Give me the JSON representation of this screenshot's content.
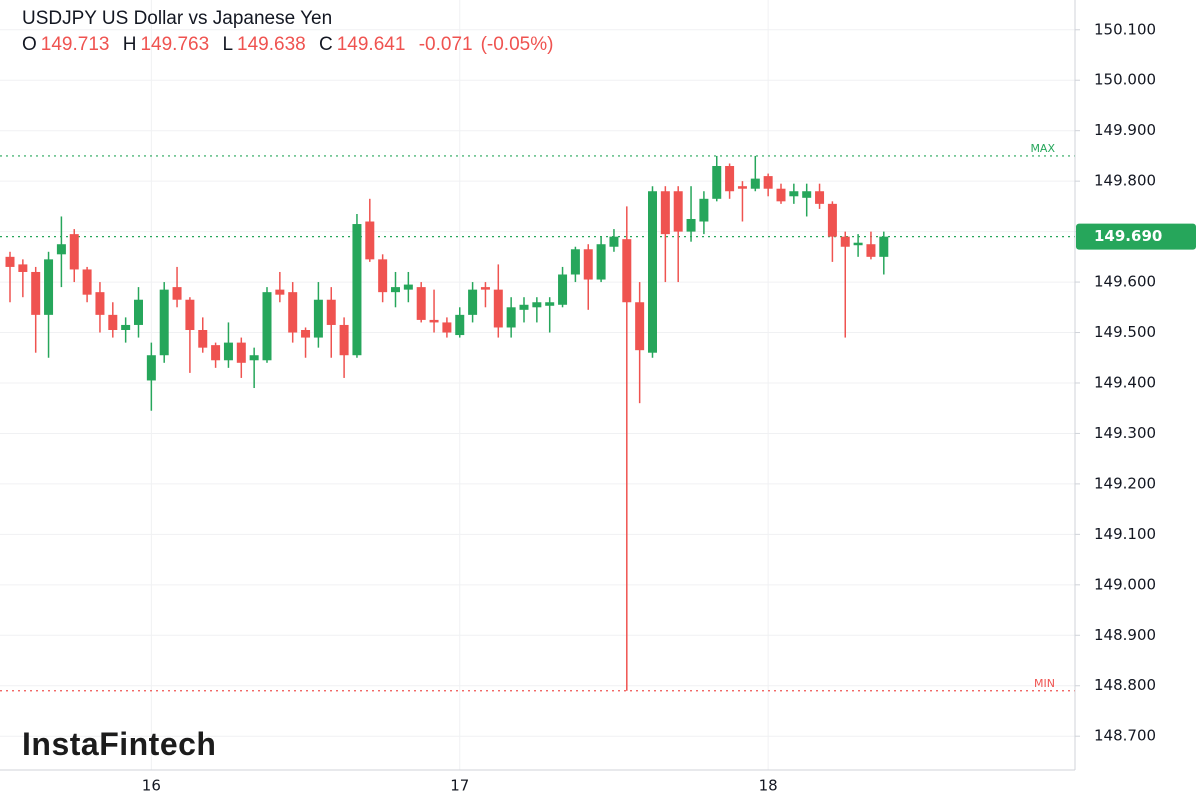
{
  "chart_data": {
    "type": "candlestick",
    "title": "USDJPY US Dollar vs Japanese Yen",
    "ohlc_header": {
      "open_label": "O",
      "open": 149.713,
      "high_label": "H",
      "high": 149.763,
      "low_label": "L",
      "low": 149.638,
      "close_label": "C",
      "close": 149.641,
      "change": -0.071,
      "change_pct": "(-0.05%)"
    },
    "watermark": "InstaFintech",
    "categories": [
      null,
      null,
      null,
      null,
      null,
      null,
      null,
      null,
      null,
      null,
      null,
      "16",
      null,
      null,
      null,
      null,
      null,
      null,
      null,
      null,
      null,
      null,
      null,
      null,
      null,
      null,
      null,
      null,
      null,
      null,
      null,
      null,
      null,
      null,
      null,
      "17",
      null,
      null,
      null,
      null,
      null,
      null,
      null,
      null,
      null,
      null,
      null,
      null,
      null,
      null,
      null,
      null,
      null,
      null,
      null,
      null,
      null,
      null,
      null,
      "18",
      null,
      null,
      null,
      null,
      null,
      null,
      null,
      null,
      null
    ],
    "open": [
      149.65,
      149.635,
      149.62,
      149.535,
      149.655,
      149.695,
      149.625,
      149.58,
      149.535,
      149.505,
      149.515,
      149.405,
      149.455,
      149.59,
      149.565,
      149.505,
      149.475,
      149.445,
      149.48,
      149.445,
      149.445,
      149.585,
      149.58,
      149.505,
      149.49,
      149.565,
      149.515,
      149.455,
      149.72,
      149.645,
      149.58,
      149.585,
      149.59,
      149.525,
      149.52,
      149.495,
      149.535,
      149.59,
      149.585,
      149.51,
      149.545,
      149.55,
      149.553,
      149.555,
      149.615,
      149.665,
      149.605,
      149.67,
      149.685,
      149.56,
      149.46,
      149.78,
      149.78,
      149.7,
      149.72,
      149.765,
      149.83,
      149.79,
      149.785,
      149.81,
      149.785,
      149.77,
      149.767,
      149.78,
      149.755,
      149.69,
      149.673,
      149.675,
      149.65
    ],
    "high": [
      149.66,
      149.645,
      149.63,
      149.66,
      149.73,
      149.705,
      149.63,
      149.6,
      149.56,
      149.53,
      149.59,
      149.48,
      149.6,
      149.63,
      149.57,
      149.53,
      149.48,
      149.52,
      149.49,
      149.47,
      149.59,
      149.62,
      149.6,
      149.51,
      149.6,
      149.59,
      149.53,
      149.735,
      149.765,
      149.655,
      149.62,
      149.62,
      149.6,
      149.585,
      149.53,
      149.55,
      149.6,
      149.6,
      149.635,
      149.57,
      149.57,
      149.57,
      149.57,
      149.63,
      149.67,
      149.675,
      149.69,
      149.705,
      149.75,
      149.6,
      149.79,
      149.79,
      149.79,
      149.79,
      149.78,
      149.85,
      149.835,
      149.8,
      149.85,
      149.815,
      149.795,
      149.795,
      149.795,
      149.795,
      149.76,
      149.7,
      149.695,
      149.7,
      149.7
    ],
    "low": [
      149.56,
      149.57,
      149.46,
      149.45,
      149.59,
      149.6,
      149.56,
      149.5,
      149.49,
      149.48,
      149.49,
      149.345,
      149.44,
      149.55,
      149.42,
      149.46,
      149.43,
      149.43,
      149.41,
      149.39,
      149.44,
      149.56,
      149.48,
      149.45,
      149.47,
      149.45,
      149.41,
      149.45,
      149.64,
      149.56,
      149.55,
      149.56,
      149.52,
      149.5,
      149.49,
      149.49,
      149.52,
      149.55,
      149.49,
      149.49,
      149.52,
      149.52,
      149.5,
      149.55,
      149.6,
      149.545,
      149.6,
      149.66,
      148.79,
      149.36,
      149.45,
      149.6,
      149.6,
      149.68,
      149.695,
      149.76,
      149.765,
      149.72,
      149.78,
      149.77,
      149.755,
      149.755,
      149.73,
      149.745,
      149.64,
      149.49,
      149.65,
      149.645,
      149.615
    ],
    "close": [
      149.63,
      149.62,
      149.535,
      149.645,
      149.675,
      149.625,
      149.575,
      149.535,
      149.505,
      149.515,
      149.565,
      149.455,
      149.585,
      149.565,
      149.505,
      149.47,
      149.445,
      149.48,
      149.44,
      149.455,
      149.58,
      149.575,
      149.5,
      149.49,
      149.565,
      149.515,
      149.455,
      149.715,
      149.645,
      149.58,
      149.59,
      149.595,
      149.525,
      149.52,
      149.5,
      149.535,
      149.585,
      149.585,
      149.51,
      149.55,
      149.555,
      149.56,
      149.56,
      149.615,
      149.665,
      149.605,
      149.675,
      149.69,
      149.56,
      149.465,
      149.78,
      149.695,
      149.7,
      149.725,
      149.765,
      149.83,
      149.78,
      149.785,
      149.805,
      149.785,
      149.76,
      149.78,
      149.78,
      149.755,
      149.69,
      149.67,
      149.678,
      149.65,
      149.69
    ],
    "up_color": "#26a65b",
    "down_color": "#ef5350",
    "ylim": [
      148.633,
      150.159
    ],
    "yticks": [
      {
        "value": 148.7,
        "label": "148.700"
      },
      {
        "value": 148.8,
        "label": "148.800"
      },
      {
        "value": 148.9,
        "label": "148.900"
      },
      {
        "value": 149.0,
        "label": "149.000"
      },
      {
        "value": 149.1,
        "label": "149.100"
      },
      {
        "value": 149.2,
        "label": "149.200"
      },
      {
        "value": 149.3,
        "label": "149.300"
      },
      {
        "value": 149.4,
        "label": "149.400"
      },
      {
        "value": 149.5,
        "label": "149.500"
      },
      {
        "value": 149.6,
        "label": "149.600"
      },
      {
        "value": 149.7,
        "label": "149.700"
      },
      {
        "value": 149.8,
        "label": "149.800"
      },
      {
        "value": 149.9,
        "label": "149.900"
      },
      {
        "value": 150.0,
        "label": "150.000"
      },
      {
        "value": 150.1,
        "label": "150.100"
      }
    ],
    "max_line": {
      "label": "MAX",
      "value": 149.85,
      "color": "#26a65b"
    },
    "min_line": {
      "label": "MIN",
      "value": 148.79,
      "color": "#ef5350"
    },
    "last_price": {
      "value": 149.69,
      "label": "149.690",
      "color": "#26a65b"
    },
    "grid": true
  }
}
